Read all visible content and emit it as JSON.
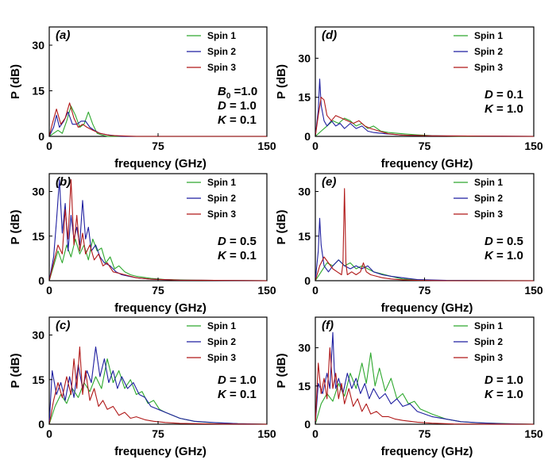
{
  "figure": {
    "xlabel": "frequency (GHz)",
    "ylabel": "P (dB)",
    "legend": [
      "Spin 1",
      "Spin 2",
      "Spin 3"
    ],
    "colors": {
      "Spin 1": "#2ea82e",
      "Spin 2": "#1f1fa0",
      "Spin 3": "#b01818"
    },
    "x_ticks": [
      "0",
      "75",
      "150"
    ]
  },
  "chart_data": [
    {
      "type": "line",
      "id": "a",
      "label": "(a)",
      "title": "",
      "xlabel": "frequency (GHz)",
      "ylabel": "P (dB)",
      "xlim": [
        0,
        150
      ],
      "ylim": [
        0,
        36
      ],
      "y_ticks": [
        0,
        15,
        30
      ],
      "params": [
        {
          "var": "B",
          "sub": "0",
          "eq": " =1.0"
        },
        {
          "var": "D",
          "sub": "",
          "eq": " = 1.0"
        },
        {
          "var": "K",
          "sub": "",
          "eq": " = 0.1"
        }
      ],
      "series": [
        {
          "name": "Spin 1",
          "x": [
            0,
            3,
            6,
            9,
            12,
            15,
            18,
            21,
            24,
            27,
            30,
            33,
            36,
            40,
            45,
            60,
            150
          ],
          "y": [
            0,
            1,
            2,
            1,
            5,
            10,
            7,
            3,
            4,
            8,
            4,
            1,
            0.5,
            0,
            0,
            0,
            0
          ]
        },
        {
          "name": "Spin 2",
          "x": [
            0,
            3,
            5,
            7,
            10,
            13,
            16,
            19,
            22,
            25,
            28,
            31,
            35,
            40,
            50,
            150
          ],
          "y": [
            0,
            3,
            7,
            3,
            5,
            8,
            4,
            4,
            5,
            5,
            3,
            2,
            1,
            0.5,
            0,
            0
          ]
        },
        {
          "name": "Spin 3",
          "x": [
            0,
            2,
            5,
            8,
            11,
            14,
            17,
            20,
            23,
            26,
            30,
            35,
            42,
            60,
            150
          ],
          "y": [
            0,
            4,
            9,
            4,
            6,
            11,
            6,
            3,
            4,
            3,
            2,
            1,
            0.3,
            0,
            0
          ]
        }
      ]
    },
    {
      "type": "line",
      "id": "d",
      "label": "(d)",
      "title": "",
      "xlabel": "frequency (GHz)",
      "ylabel": "P (dB)",
      "xlim": [
        0,
        150
      ],
      "ylim": [
        0,
        42
      ],
      "y_ticks": [
        0,
        15,
        30
      ],
      "params": [
        {
          "var": "D",
          "sub": "",
          "eq": " = 0.1"
        },
        {
          "var": "K",
          "sub": "",
          "eq": " = 1.0"
        }
      ],
      "series": [
        {
          "name": "Spin 1",
          "x": [
            0,
            4,
            8,
            12,
            16,
            20,
            24,
            28,
            32,
            36,
            40,
            45,
            50,
            60,
            70,
            80,
            100,
            150
          ],
          "y": [
            0,
            2,
            4,
            6,
            5,
            7,
            6,
            4,
            5,
            3,
            4,
            2,
            1.5,
            1,
            0.6,
            0.3,
            0,
            0
          ]
        },
        {
          "name": "Spin 2",
          "x": [
            0,
            2,
            3,
            4,
            6,
            8,
            11,
            14,
            17,
            20,
            24,
            28,
            32,
            36,
            40,
            48,
            60,
            80,
            150
          ],
          "y": [
            0,
            10,
            22,
            12,
            6,
            4,
            6,
            4,
            5,
            3,
            5,
            3,
            4,
            2,
            1.5,
            1,
            0.5,
            0.2,
            0
          ]
        },
        {
          "name": "Spin 3",
          "x": [
            0,
            2,
            4,
            6,
            8,
            11,
            14,
            18,
            22,
            26,
            30,
            34,
            38,
            44,
            50,
            60,
            80,
            150
          ],
          "y": [
            0,
            8,
            15,
            14,
            8,
            6,
            8,
            7,
            6,
            5,
            6,
            4,
            3,
            2,
            1,
            0.5,
            0.2,
            0
          ]
        }
      ]
    },
    {
      "type": "line",
      "id": "b",
      "label": "(b)",
      "title": "",
      "xlabel": "frequency (GHz)",
      "ylabel": "P (dB)",
      "xlim": [
        0,
        150
      ],
      "ylim": [
        0,
        36
      ],
      "y_ticks": [
        0,
        15,
        30
      ],
      "params": [
        {
          "var": "D",
          "sub": "",
          "eq": " = 0.5"
        },
        {
          "var": "K",
          "sub": "",
          "eq": " = 0.1"
        }
      ],
      "series": [
        {
          "name": "Spin 1",
          "x": [
            0,
            3,
            6,
            9,
            12,
            15,
            18,
            21,
            24,
            27,
            30,
            33,
            36,
            39,
            42,
            45,
            48,
            52,
            56,
            60,
            70,
            80,
            100,
            150
          ],
          "y": [
            0,
            5,
            10,
            6,
            12,
            8,
            14,
            9,
            12,
            7,
            14,
            10,
            11,
            6,
            8,
            4,
            5,
            3,
            2,
            1.5,
            0.8,
            0.4,
            0.2,
            0
          ]
        },
        {
          "name": "Spin 2",
          "x": [
            0,
            3,
            5,
            7,
            9,
            11,
            13,
            15,
            17,
            19,
            21,
            23,
            25,
            27,
            29,
            32,
            35,
            38,
            42,
            46,
            50,
            55,
            60,
            70,
            90,
            150
          ],
          "y": [
            0,
            8,
            20,
            34,
            16,
            26,
            10,
            22,
            14,
            18,
            12,
            27,
            14,
            18,
            10,
            12,
            8,
            6,
            5,
            3,
            2,
            1.5,
            1,
            0.5,
            0.2,
            0
          ]
        },
        {
          "name": "Spin 3",
          "x": [
            0,
            3,
            6,
            9,
            11,
            13,
            15,
            17,
            19,
            21,
            23,
            25,
            28,
            31,
            34,
            37,
            40,
            44,
            48,
            52,
            60,
            70,
            90,
            150
          ],
          "y": [
            0,
            6,
            12,
            9,
            24,
            14,
            34,
            12,
            22,
            10,
            16,
            9,
            12,
            7,
            9,
            5,
            6,
            3,
            2.5,
            2,
            1,
            0.5,
            0.2,
            0
          ]
        }
      ]
    },
    {
      "type": "line",
      "id": "e",
      "label": "(e)",
      "title": "",
      "xlabel": "frequency (GHz)",
      "ylabel": "P (dB)",
      "xlim": [
        0,
        150
      ],
      "ylim": [
        0,
        36
      ],
      "y_ticks": [
        0,
        15,
        30
      ],
      "params": [
        {
          "var": "D",
          "sub": "",
          "eq": " = 0.5"
        },
        {
          "var": "K",
          "sub": "",
          "eq": " = 1.0"
        }
      ],
      "series": [
        {
          "name": "Spin 1",
          "x": [
            0,
            4,
            8,
            12,
            16,
            20,
            24,
            28,
            32,
            36,
            40,
            44,
            48,
            52,
            56,
            60,
            70,
            80,
            150
          ],
          "y": [
            0,
            3,
            6,
            5,
            7,
            5,
            6,
            4,
            5,
            4,
            3,
            2.5,
            2,
            1.5,
            1,
            0.6,
            0.3,
            0.1,
            0
          ]
        },
        {
          "name": "Spin 2",
          "x": [
            0,
            2,
            3,
            4,
            6,
            9,
            12,
            16,
            20,
            24,
            28,
            32,
            36,
            40,
            46,
            52,
            60,
            70,
            90,
            150
          ],
          "y": [
            0,
            10,
            21,
            12,
            5,
            3,
            5,
            7,
            5,
            4,
            5,
            4,
            5,
            3,
            2,
            1.5,
            1,
            0.4,
            0.1,
            0
          ]
        },
        {
          "name": "Spin 3",
          "x": [
            0,
            3,
            6,
            9,
            12,
            15,
            18,
            19,
            20,
            21,
            22,
            25,
            28,
            31,
            33,
            35,
            38,
            42,
            46,
            52,
            60,
            70,
            90,
            150
          ],
          "y": [
            0,
            5,
            8,
            6,
            4,
            3,
            2,
            6,
            31,
            6,
            2,
            3,
            2,
            3,
            6,
            3,
            2,
            1.5,
            1,
            0.6,
            0.3,
            0.1,
            0,
            0
          ]
        }
      ]
    },
    {
      "type": "line",
      "id": "c",
      "label": "(c)",
      "title": "",
      "xlabel": "frequency (GHz)",
      "ylabel": "P (dB)",
      "xlim": [
        0,
        150
      ],
      "ylim": [
        0,
        36
      ],
      "y_ticks": [
        0,
        15,
        30
      ],
      "params": [
        {
          "var": "D",
          "sub": "",
          "eq": " = 1.0"
        },
        {
          "var": "K",
          "sub": "",
          "eq": " = 0.1"
        }
      ],
      "series": [
        {
          "name": "Spin 1",
          "x": [
            0,
            4,
            8,
            12,
            16,
            20,
            24,
            28,
            32,
            36,
            40,
            44,
            48,
            52,
            56,
            60,
            64,
            68,
            72,
            76,
            80,
            85,
            90,
            95,
            100,
            110,
            120,
            130,
            140,
            150
          ],
          "y": [
            0,
            6,
            10,
            7,
            12,
            9,
            14,
            11,
            16,
            12,
            22,
            14,
            18,
            12,
            15,
            10,
            11,
            7,
            8,
            5,
            4,
            3,
            2,
            1.5,
            1,
            0.6,
            0.4,
            0.2,
            0.1,
            0
          ]
        },
        {
          "name": "Spin 2",
          "x": [
            0,
            2,
            5,
            8,
            11,
            14,
            17,
            20,
            23,
            26,
            29,
            32,
            35,
            38,
            41,
            44,
            47,
            50,
            54,
            58,
            62,
            66,
            70,
            75,
            80,
            85,
            90,
            100,
            115,
            130,
            150
          ],
          "y": [
            0,
            18,
            10,
            14,
            8,
            16,
            9,
            20,
            12,
            18,
            14,
            26,
            16,
            22,
            14,
            18,
            12,
            16,
            12,
            14,
            10,
            9,
            6,
            5,
            4,
            3,
            2,
            1,
            0.5,
            0.2,
            0
          ]
        },
        {
          "name": "Spin 3",
          "x": [
            0,
            3,
            6,
            9,
            12,
            15,
            17,
            19,
            21,
            23,
            25,
            28,
            31,
            34,
            37,
            40,
            44,
            48,
            52,
            56,
            60,
            66,
            72,
            80,
            90,
            110,
            150
          ],
          "y": [
            0,
            8,
            14,
            9,
            16,
            10,
            22,
            12,
            26,
            10,
            18,
            8,
            12,
            6,
            8,
            5,
            6,
            3,
            4,
            2,
            2.5,
            1.5,
            1,
            0.6,
            0.3,
            0.1,
            0
          ]
        }
      ]
    },
    {
      "type": "line",
      "id": "f",
      "label": "(f)",
      "title": "",
      "xlabel": "frequency (GHz)",
      "ylabel": "P (dB)",
      "xlim": [
        0,
        150
      ],
      "ylim": [
        0,
        42
      ],
      "y_ticks": [
        0,
        15,
        30
      ],
      "params": [
        {
          "var": "D",
          "sub": "",
          "eq": " = 1.0"
        },
        {
          "var": "K",
          "sub": "",
          "eq": " = 1.0"
        }
      ],
      "series": [
        {
          "name": "Spin 1",
          "x": [
            0,
            4,
            8,
            12,
            16,
            20,
            24,
            28,
            32,
            35,
            38,
            41,
            44,
            48,
            52,
            56,
            60,
            64,
            68,
            72,
            76,
            80,
            85,
            90,
            95,
            100,
            110,
            120,
            135,
            150
          ],
          "y": [
            0,
            8,
            12,
            9,
            16,
            11,
            20,
            14,
            24,
            16,
            28,
            15,
            22,
            13,
            18,
            10,
            12,
            8,
            9,
            6,
            5,
            4,
            3,
            2,
            1.5,
            1,
            0.6,
            0.4,
            0.2,
            0
          ]
        },
        {
          "name": "Spin 2",
          "x": [
            0,
            2,
            5,
            8,
            10,
            12,
            13,
            14,
            16,
            19,
            22,
            25,
            28,
            31,
            34,
            37,
            40,
            44,
            48,
            52,
            56,
            60,
            65,
            70,
            75,
            80,
            90,
            100,
            115,
            130,
            150
          ],
          "y": [
            0,
            16,
            12,
            20,
            14,
            36,
            22,
            14,
            18,
            12,
            20,
            14,
            18,
            12,
            16,
            10,
            14,
            10,
            12,
            8,
            10,
            7,
            8,
            5,
            4,
            3,
            2,
            1,
            0.5,
            0.2,
            0
          ]
        },
        {
          "name": "Spin 3",
          "x": [
            0,
            2,
            4,
            6,
            8,
            10,
            12,
            14,
            16,
            18,
            20,
            23,
            26,
            29,
            32,
            35,
            38,
            42,
            46,
            50,
            55,
            60,
            70,
            80,
            95,
            150
          ],
          "y": [
            0,
            24,
            12,
            18,
            10,
            30,
            14,
            20,
            10,
            16,
            8,
            14,
            7,
            10,
            5,
            8,
            4,
            5,
            3,
            3,
            2,
            1.5,
            0.8,
            0.4,
            0.1,
            0
          ]
        }
      ]
    }
  ]
}
